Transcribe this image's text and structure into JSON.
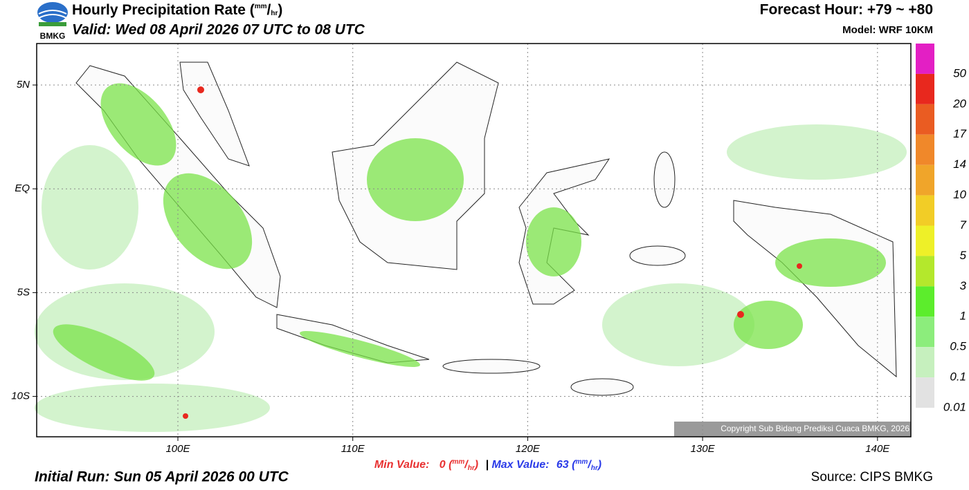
{
  "header": {
    "title": [
      "Hourly Precipitation Rate (",
      "mm",
      "/",
      "hr",
      ")"
    ],
    "valid": "Valid: Wed 08 April 2026 07 UTC to 08 UTC",
    "forecast_hour": "Forecast Hour: +79 ~ +80",
    "model": "Model: WRF 10KM",
    "logo": "BMKG"
  },
  "map": {
    "lat_labels": [
      "5N",
      "EQ",
      "5S",
      "10S"
    ],
    "lon_labels": [
      "100E",
      "110E",
      "120E",
      "130E",
      "140E"
    ],
    "copyright": "Copyright Sub Bidang Prediksi Cuaca BMKG, 2026"
  },
  "legend": [
    {
      "label": "50",
      "color": "#e31fc4"
    },
    {
      "label": "20",
      "color": "#e8281e"
    },
    {
      "label": "17",
      "color": "#ea5c22"
    },
    {
      "label": "14",
      "color": "#f0882a"
    },
    {
      "label": "10",
      "color": "#f0a52a"
    },
    {
      "label": "7",
      "color": "#f2cd26"
    },
    {
      "label": "5",
      "color": "#eef028"
    },
    {
      "label": "3",
      "color": "#b4e82c"
    },
    {
      "label": "1",
      "color": "#5ced2c"
    },
    {
      "label": "0.5",
      "color": "#8ced7c"
    },
    {
      "label": "0.1",
      "color": "#c6f0be"
    },
    {
      "label": "0.01",
      "color": "#e2e2e2"
    }
  ],
  "footer": {
    "min": [
      "Min Value:",
      "0",
      "(",
      "mm",
      "/",
      "hr",
      ")"
    ],
    "separator": "|",
    "max": [
      "Max Value:",
      "63",
      "(",
      "mm",
      "/",
      "hr",
      ")"
    ],
    "initial_run": "Initial Run: Sun 05 April 2026 00 UTC",
    "source": "Source: CIPS BMKG"
  }
}
